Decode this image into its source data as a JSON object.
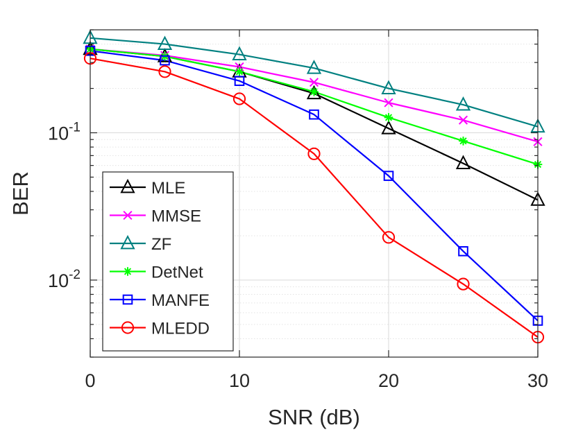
{
  "chart_data": {
    "type": "line",
    "title": "",
    "xlabel": "SNR (dB)",
    "ylabel": "BER",
    "x": [
      0,
      5,
      10,
      15,
      20,
      25,
      30
    ],
    "xlim": [
      0,
      30
    ],
    "ylim": [
      0.003,
      0.5
    ],
    "yscale": "log",
    "xticks": [
      0,
      10,
      20,
      30
    ],
    "yticks": [
      {
        "value": 0.1,
        "base": "10",
        "exp": "-1"
      },
      {
        "value": 0.01,
        "base": "10",
        "exp": "-2"
      }
    ],
    "grid": true,
    "legend_position": "bottom-left",
    "series": [
      {
        "name": "MLE",
        "color": "#000000",
        "marker": "triangle",
        "values": [
          0.37,
          0.33,
          0.26,
          0.185,
          0.107,
          0.062,
          0.035
        ]
      },
      {
        "name": "MMSE",
        "color": "#ff00ff",
        "marker": "x",
        "values": [
          0.37,
          0.335,
          0.28,
          0.22,
          0.16,
          0.122,
          0.087
        ]
      },
      {
        "name": "ZF",
        "color": "#008080",
        "marker": "triangle",
        "values": [
          0.44,
          0.4,
          0.34,
          0.275,
          0.2,
          0.155,
          0.11
        ]
      },
      {
        "name": "DetNet",
        "color": "#00ff00",
        "marker": "asterisk",
        "values": [
          0.37,
          0.33,
          0.26,
          0.19,
          0.127,
          0.088,
          0.061
        ]
      },
      {
        "name": "MANFE",
        "color": "#0000ff",
        "marker": "square",
        "values": [
          0.36,
          0.31,
          0.225,
          0.133,
          0.051,
          0.0157,
          0.0053
        ]
      },
      {
        "name": "MLEDD",
        "color": "#ff0000",
        "marker": "circle",
        "values": [
          0.32,
          0.26,
          0.17,
          0.072,
          0.0195,
          0.0094,
          0.0041
        ]
      }
    ]
  }
}
